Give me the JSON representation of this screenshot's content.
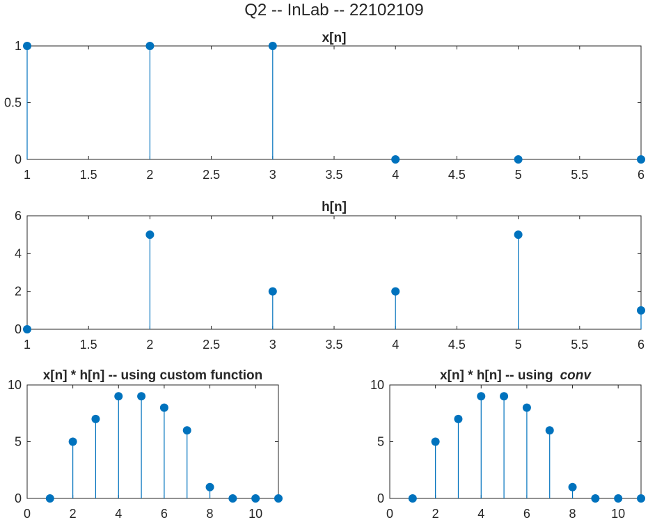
{
  "figure": {
    "suptitle": "Q2 -- InLab -- 22102109",
    "series_color": "#0072BD"
  },
  "chart_data": [
    {
      "type": "stem",
      "title": "x[n]",
      "x": [
        1,
        2,
        3,
        4,
        5,
        6
      ],
      "values": [
        1,
        1,
        1,
        0,
        0,
        0
      ],
      "xlim": [
        1,
        6
      ],
      "ylim": [
        0,
        1
      ],
      "xticks": [
        1,
        1.5,
        2,
        2.5,
        3,
        3.5,
        4,
        4.5,
        5,
        5.5,
        6
      ],
      "yticks": [
        0,
        0.5,
        1
      ],
      "grid": false
    },
    {
      "type": "stem",
      "title": "h[n]",
      "x": [
        1,
        2,
        3,
        4,
        5,
        6
      ],
      "values": [
        0,
        5,
        2,
        2,
        5,
        1
      ],
      "xlim": [
        1,
        6
      ],
      "ylim": [
        0,
        6
      ],
      "xticks": [
        1,
        1.5,
        2,
        2.5,
        3,
        3.5,
        4,
        4.5,
        5,
        5.5,
        6
      ],
      "yticks": [
        0,
        2,
        4,
        6
      ],
      "grid": false
    },
    {
      "type": "stem",
      "title": "x[n] * h[n] -- using custom function",
      "x": [
        1,
        2,
        3,
        4,
        5,
        6,
        7,
        8,
        9,
        10,
        11
      ],
      "values": [
        0,
        5,
        7,
        9,
        9,
        8,
        6,
        1,
        0,
        0,
        0
      ],
      "xlim": [
        0,
        11
      ],
      "ylim": [
        0,
        10
      ],
      "xticks": [
        0,
        2,
        4,
        6,
        8,
        10
      ],
      "yticks": [
        0,
        5,
        10
      ],
      "grid": false
    },
    {
      "type": "stem",
      "title": "x[n] * h[n] -- using",
      "title_italic": "conv",
      "x": [
        1,
        2,
        3,
        4,
        5,
        6,
        7,
        8,
        9,
        10,
        11
      ],
      "values": [
        0,
        5,
        7,
        9,
        9,
        8,
        6,
        1,
        0,
        0,
        0
      ],
      "xlim": [
        0,
        11
      ],
      "ylim": [
        0,
        10
      ],
      "xticks": [
        0,
        2,
        4,
        6,
        8,
        10
      ],
      "yticks": [
        0,
        5,
        10
      ],
      "grid": false
    }
  ]
}
